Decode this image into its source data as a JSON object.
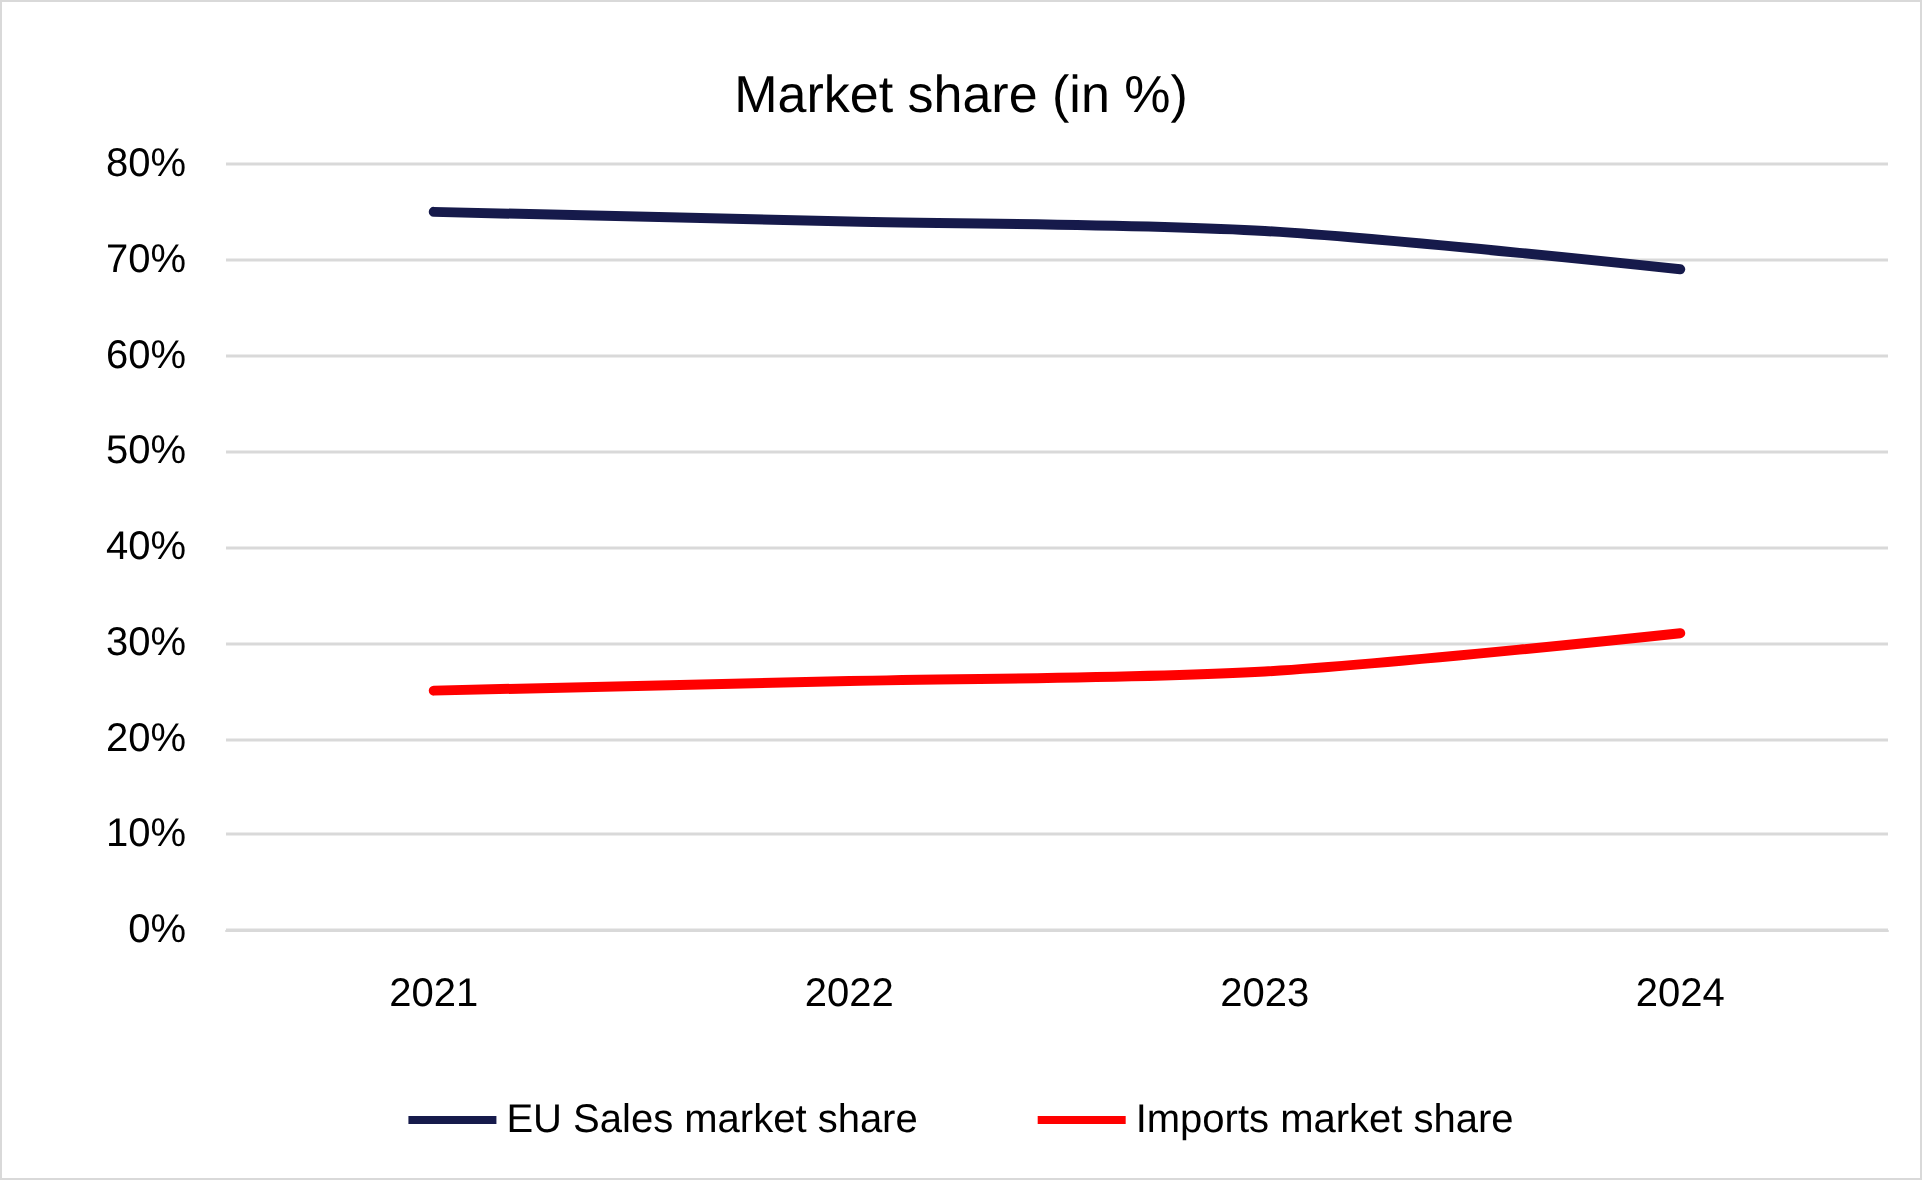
{
  "chart_data": {
    "type": "line",
    "title": "Market share (in %)",
    "categories": [
      "2021",
      "2022",
      "2023",
      "2024"
    ],
    "series": [
      {
        "name": "EU Sales market share",
        "color": "#161a4b",
        "values": [
          75,
          74,
          73,
          69
        ]
      },
      {
        "name": "Imports market share",
        "color": "#ff0000",
        "values": [
          25,
          26,
          27,
          31
        ]
      }
    ],
    "ylim": [
      0,
      80
    ],
    "yticks": [
      {
        "value": 0,
        "label": "0%"
      },
      {
        "value": 10,
        "label": "10%"
      },
      {
        "value": 20,
        "label": "20%"
      },
      {
        "value": 30,
        "label": "30%"
      },
      {
        "value": 40,
        "label": "40%"
      },
      {
        "value": 50,
        "label": "50%"
      },
      {
        "value": 60,
        "label": "60%"
      },
      {
        "value": 70,
        "label": "70%"
      },
      {
        "value": 80,
        "label": "80%"
      }
    ],
    "grid": "y",
    "legend": "bottom",
    "marker": "none",
    "line_style": "solid"
  }
}
